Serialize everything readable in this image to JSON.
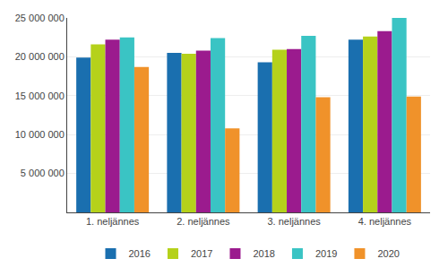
{
  "chart_data": {
    "type": "bar",
    "categories": [
      "1. neljännes",
      "2. neljännes",
      "3. neljännes",
      "4. neljännes"
    ],
    "series": [
      {
        "name": "2016",
        "color": "#1a6faf",
        "values": [
          19900000,
          20500000,
          19300000,
          22200000
        ]
      },
      {
        "name": "2017",
        "color": "#b5d11b",
        "values": [
          21600000,
          20400000,
          20900000,
          22600000
        ]
      },
      {
        "name": "2018",
        "color": "#9b1b8e",
        "values": [
          22200000,
          20800000,
          21000000,
          23300000
        ]
      },
      {
        "name": "2019",
        "color": "#3ac4c4",
        "values": [
          22500000,
          22400000,
          22700000,
          25000000
        ]
      },
      {
        "name": "2020",
        "color": "#f0922a",
        "values": [
          18700000,
          10800000,
          14800000,
          14900000
        ]
      }
    ],
    "ylim": [
      0,
      25000000
    ],
    "yticks": [
      {
        "value": 5000000,
        "label": "5 000 000"
      },
      {
        "value": 10000000,
        "label": "10 000 000"
      },
      {
        "value": 15000000,
        "label": "15 000 000"
      },
      {
        "value": 20000000,
        "label": "20 000 000"
      },
      {
        "value": 25000000,
        "label": "25 000 000"
      }
    ],
    "grid": true,
    "legend": "bottom"
  }
}
